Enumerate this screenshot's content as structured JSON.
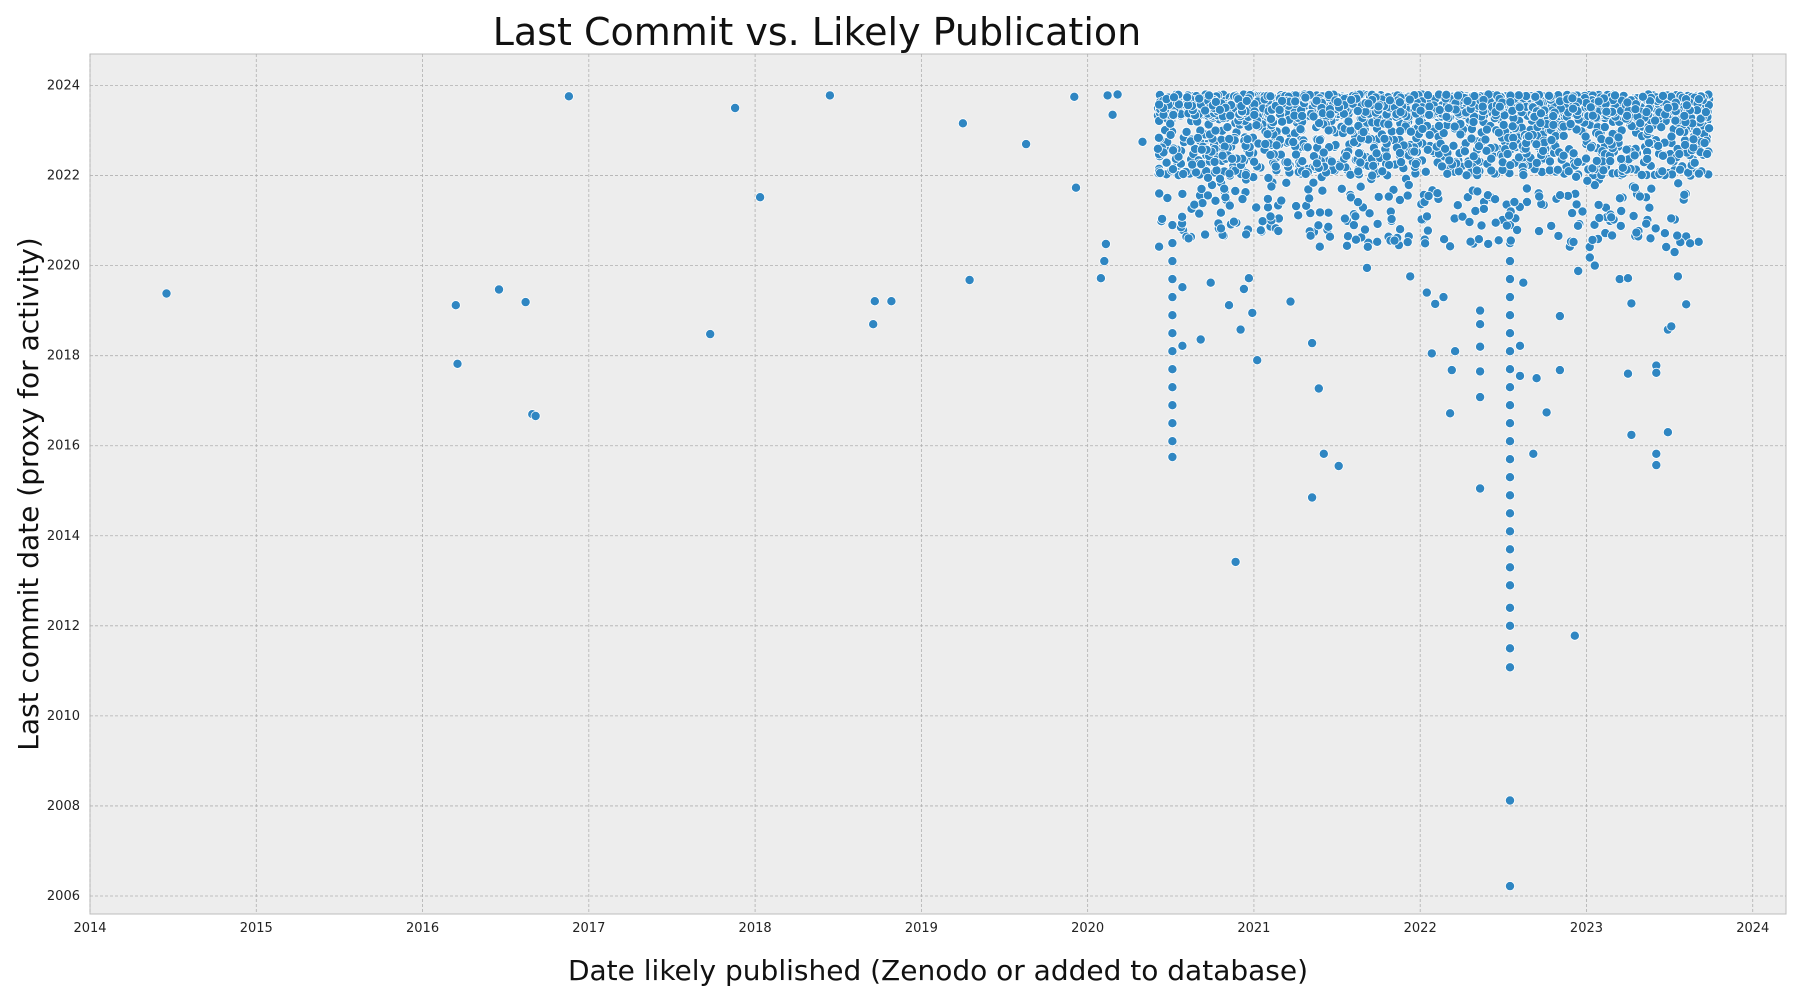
{
  "chart_data": {
    "type": "scatter",
    "title": "Last Commit vs. Likely Publication",
    "xlabel": "Date likely published (Zenodo or added to database)",
    "ylabel": "Last commit date (proxy for activity)",
    "xlim": [
      2014.0,
      2024.2
    ],
    "ylim": [
      2005.6,
      2024.7
    ],
    "x_ticks": [
      "2014",
      "2015",
      "2016",
      "2017",
      "2018",
      "2019",
      "2020",
      "2021",
      "2022",
      "2023",
      "2024"
    ],
    "y_ticks": [
      "2006",
      "2008",
      "2010",
      "2012",
      "2014",
      "2016",
      "2018",
      "2020",
      "2022",
      "2024"
    ],
    "grid": true,
    "color": "#2f86c2",
    "background": "#ededed",
    "series": [
      {
        "points": [
          [
            2014.46,
            2019.38
          ],
          [
            2016.2,
            2019.12
          ],
          [
            2016.21,
            2017.82
          ],
          [
            2016.46,
            2019.47
          ],
          [
            2016.62,
            2019.19
          ],
          [
            2016.66,
            2016.7
          ],
          [
            2016.68,
            2016.66
          ],
          [
            2016.88,
            2023.76
          ],
          [
            2017.73,
            2018.48
          ],
          [
            2017.88,
            2023.5
          ],
          [
            2018.03,
            2021.52
          ],
          [
            2018.45,
            2023.78
          ],
          [
            2018.71,
            2018.7
          ],
          [
            2018.72,
            2019.21
          ],
          [
            2018.82,
            2019.21
          ],
          [
            2019.25,
            2023.16
          ],
          [
            2019.29,
            2019.68
          ],
          [
            2019.63,
            2022.7
          ],
          [
            2019.92,
            2023.75
          ],
          [
            2019.93,
            2021.73
          ],
          [
            2020.08,
            2019.72
          ],
          [
            2020.1,
            2020.1
          ],
          [
            2020.11,
            2020.48
          ],
          [
            2020.12,
            2023.78
          ],
          [
            2020.15,
            2023.35
          ],
          [
            2020.18,
            2023.8
          ],
          [
            2020.33,
            2022.75
          ],
          [
            2020.43,
            2020.42
          ],
          [
            2020.51,
            2015.75
          ],
          [
            2020.51,
            2016.1
          ],
          [
            2020.51,
            2016.5
          ],
          [
            2020.51,
            2016.9
          ],
          [
            2020.51,
            2017.3
          ],
          [
            2020.51,
            2017.7
          ],
          [
            2020.51,
            2018.1
          ],
          [
            2020.51,
            2018.5
          ],
          [
            2020.51,
            2018.9
          ],
          [
            2020.51,
            2019.3
          ],
          [
            2020.51,
            2019.7
          ],
          [
            2020.51,
            2020.1
          ],
          [
            2020.51,
            2020.5
          ],
          [
            2020.51,
            2020.9
          ],
          [
            2020.57,
            2018.22
          ],
          [
            2020.57,
            2019.52
          ],
          [
            2020.68,
            2018.36
          ],
          [
            2020.74,
            2019.62
          ],
          [
            2020.85,
            2019.12
          ],
          [
            2020.89,
            2013.42
          ],
          [
            2020.92,
            2018.58
          ],
          [
            2020.94,
            2019.48
          ],
          [
            2020.97,
            2019.72
          ],
          [
            2020.99,
            2018.95
          ],
          [
            2021.02,
            2017.9
          ],
          [
            2021.22,
            2019.2
          ],
          [
            2021.35,
            2018.28
          ],
          [
            2021.35,
            2014.85
          ],
          [
            2021.39,
            2017.27
          ],
          [
            2021.42,
            2015.82
          ],
          [
            2021.51,
            2015.55
          ],
          [
            2021.56,
            2020.44
          ],
          [
            2021.68,
            2019.95
          ],
          [
            2021.94,
            2019.76
          ],
          [
            2022.04,
            2019.4
          ],
          [
            2022.07,
            2018.05
          ],
          [
            2022.09,
            2019.15
          ],
          [
            2022.14,
            2019.3
          ],
          [
            2022.18,
            2016.72
          ],
          [
            2022.19,
            2017.68
          ],
          [
            2022.21,
            2018.1
          ],
          [
            2022.36,
            2015.05
          ],
          [
            2022.36,
            2017.08
          ],
          [
            2022.36,
            2018.2
          ],
          [
            2022.36,
            2019.0
          ],
          [
            2022.36,
            2017.65
          ],
          [
            2022.36,
            2018.7
          ],
          [
            2022.54,
            2006.22
          ],
          [
            2022.54,
            2008.12
          ],
          [
            2022.54,
            2011.08
          ],
          [
            2022.54,
            2011.5
          ],
          [
            2022.54,
            2012.0
          ],
          [
            2022.54,
            2012.4
          ],
          [
            2022.54,
            2012.9
          ],
          [
            2022.54,
            2013.3
          ],
          [
            2022.54,
            2013.7
          ],
          [
            2022.54,
            2014.1
          ],
          [
            2022.54,
            2014.5
          ],
          [
            2022.54,
            2014.9
          ],
          [
            2022.54,
            2015.3
          ],
          [
            2022.54,
            2015.7
          ],
          [
            2022.54,
            2016.1
          ],
          [
            2022.54,
            2016.5
          ],
          [
            2022.54,
            2016.9
          ],
          [
            2022.54,
            2017.3
          ],
          [
            2022.54,
            2017.7
          ],
          [
            2022.54,
            2018.1
          ],
          [
            2022.54,
            2018.5
          ],
          [
            2022.54,
            2018.9
          ],
          [
            2022.54,
            2019.3
          ],
          [
            2022.54,
            2019.7
          ],
          [
            2022.54,
            2020.1
          ],
          [
            2022.54,
            2020.5
          ],
          [
            2022.54,
            2020.9
          ],
          [
            2022.6,
            2018.22
          ],
          [
            2022.6,
            2017.55
          ],
          [
            2022.62,
            2019.62
          ],
          [
            2022.68,
            2015.82
          ],
          [
            2022.7,
            2017.5
          ],
          [
            2022.76,
            2016.74
          ],
          [
            2022.84,
            2017.68
          ],
          [
            2022.84,
            2018.88
          ],
          [
            2022.93,
            2011.78
          ],
          [
            2022.9,
            2020.42
          ],
          [
            2022.95,
            2019.88
          ],
          [
            2023.02,
            2020.18
          ],
          [
            2023.05,
            2020.0
          ],
          [
            2023.2,
            2019.7
          ],
          [
            2023.25,
            2019.72
          ],
          [
            2023.25,
            2017.6
          ],
          [
            2023.27,
            2016.24
          ],
          [
            2023.27,
            2019.16
          ],
          [
            2023.42,
            2017.78
          ],
          [
            2023.42,
            2017.62
          ],
          [
            2023.42,
            2015.82
          ],
          [
            2023.42,
            2015.57
          ],
          [
            2023.49,
            2016.3
          ],
          [
            2023.49,
            2018.58
          ],
          [
            2023.51,
            2018.65
          ],
          [
            2023.55,
            2019.76
          ],
          [
            2023.6,
            2019.14
          ],
          [
            2023.6,
            2020.65
          ],
          [
            2023.53,
            2020.3
          ]
        ]
      }
    ]
  }
}
